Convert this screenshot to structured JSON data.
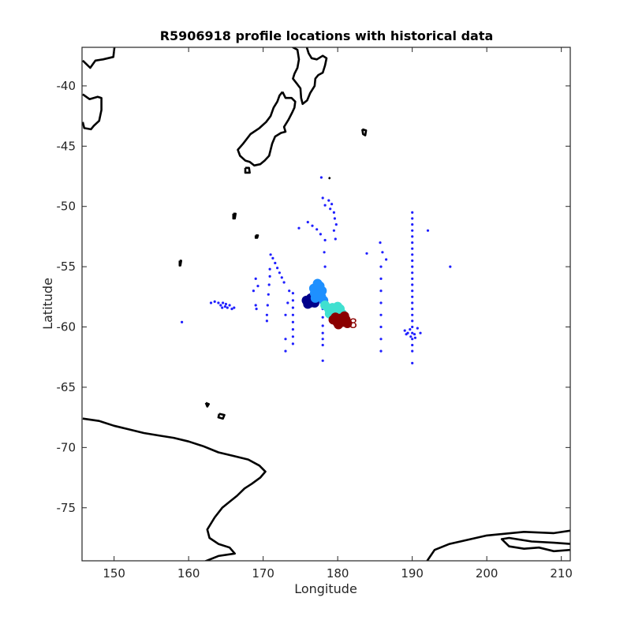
{
  "chart_data": {
    "type": "scatter",
    "title": "R5906918 profile locations with historical data",
    "xlabel": "Longitude",
    "ylabel": "Latitude",
    "xlim": [
      145.7,
      211.2
    ],
    "ylim": [
      -79.4,
      -36.8
    ],
    "xticks": [
      150,
      160,
      170,
      180,
      190,
      200,
      210
    ],
    "yticks": [
      -40,
      -45,
      -50,
      -55,
      -60,
      -65,
      -70,
      -75
    ],
    "grid": false,
    "float_label": "8",
    "colors": {
      "historical": "#1f1fff",
      "coast": "#000000",
      "track_early": "#00008b",
      "track_mid": "#1e90ff",
      "track_late": "#40e0d0",
      "track_latest": "#8b0000"
    },
    "series": [
      {
        "role": "historical",
        "points": [
          [
            177.8,
            -47.6
          ],
          [
            178.0,
            -49.3
          ],
          [
            178.3,
            -49.9
          ],
          [
            178.8,
            -49.5
          ],
          [
            179.0,
            -50.2
          ],
          [
            179.2,
            -49.8
          ],
          [
            179.5,
            -50.5
          ],
          [
            179.6,
            -51.0
          ],
          [
            179.8,
            -51.5
          ],
          [
            176.0,
            -51.3
          ],
          [
            176.6,
            -51.6
          ],
          [
            177.2,
            -51.9
          ],
          [
            177.7,
            -52.3
          ],
          [
            178.3,
            -52.8
          ],
          [
            179.5,
            -52.0
          ],
          [
            179.7,
            -52.7
          ],
          [
            178.2,
            -53.8
          ],
          [
            178.3,
            -55.0
          ],
          [
            174.8,
            -51.8
          ],
          [
            185.7,
            -53.0
          ],
          [
            186.0,
            -53.8
          ],
          [
            186.5,
            -54.4
          ],
          [
            183.9,
            -53.9
          ],
          [
            190.0,
            -50.5
          ],
          [
            190.0,
            -51.0
          ],
          [
            190.0,
            -51.5
          ],
          [
            190.0,
            -52.0
          ],
          [
            190.0,
            -52.5
          ],
          [
            190.0,
            -53.0
          ],
          [
            190.0,
            -53.5
          ],
          [
            190.0,
            -54.0
          ],
          [
            190.0,
            -54.5
          ],
          [
            190.0,
            -55.0
          ],
          [
            190.0,
            -55.5
          ],
          [
            190.0,
            -56.0
          ],
          [
            190.0,
            -56.5
          ],
          [
            190.0,
            -57.0
          ],
          [
            190.0,
            -57.5
          ],
          [
            190.0,
            -58.0
          ],
          [
            190.0,
            -58.5
          ],
          [
            190.0,
            -59.0
          ],
          [
            190.0,
            -59.5
          ],
          [
            190.0,
            -60.0
          ],
          [
            190.0,
            -60.5
          ],
          [
            190.0,
            -61.0
          ],
          [
            190.0,
            -61.5
          ],
          [
            190.0,
            -62.0
          ],
          [
            190.0,
            -63.0
          ],
          [
            189.0,
            -60.3
          ],
          [
            189.4,
            -60.5
          ],
          [
            189.7,
            -60.2
          ],
          [
            190.3,
            -60.6
          ],
          [
            190.7,
            -60.1
          ],
          [
            191.1,
            -60.5
          ],
          [
            189.8,
            -60.8
          ],
          [
            190.4,
            -60.9
          ],
          [
            189.2,
            -60.6
          ],
          [
            192.1,
            -52.0
          ],
          [
            195.1,
            -55.0
          ],
          [
            185.8,
            -55.0
          ],
          [
            185.8,
            -56.0
          ],
          [
            185.8,
            -57.0
          ],
          [
            185.8,
            -58.0
          ],
          [
            185.8,
            -59.0
          ],
          [
            185.8,
            -60.0
          ],
          [
            185.8,
            -61.0
          ],
          [
            185.8,
            -62.0
          ],
          [
            171.0,
            -54.0
          ],
          [
            171.3,
            -54.3
          ],
          [
            171.6,
            -54.7
          ],
          [
            171.9,
            -55.1
          ],
          [
            172.2,
            -55.5
          ],
          [
            172.5,
            -55.9
          ],
          [
            172.8,
            -56.3
          ],
          [
            170.9,
            -55.2
          ],
          [
            170.9,
            -55.8
          ],
          [
            170.8,
            -56.5
          ],
          [
            170.7,
            -57.3
          ],
          [
            170.6,
            -58.2
          ],
          [
            170.5,
            -59.0
          ],
          [
            170.5,
            -59.5
          ],
          [
            173.5,
            -57.0
          ],
          [
            173.3,
            -58.0
          ],
          [
            173.0,
            -59.0
          ],
          [
            173.0,
            -61.0
          ],
          [
            173.0,
            -62.0
          ],
          [
            174.0,
            -57.2
          ],
          [
            174.0,
            -57.8
          ],
          [
            174.0,
            -58.4
          ],
          [
            174.0,
            -59.0
          ],
          [
            174.0,
            -59.6
          ],
          [
            174.0,
            -60.2
          ],
          [
            174.0,
            -60.8
          ],
          [
            174.0,
            -61.4
          ],
          [
            178.0,
            -58.5
          ],
          [
            178.0,
            -59.2
          ],
          [
            178.0,
            -59.9
          ],
          [
            178.0,
            -60.5
          ],
          [
            178.0,
            -61.0
          ],
          [
            178.0,
            -61.5
          ],
          [
            178.0,
            -62.8
          ],
          [
            169.0,
            -56.0
          ],
          [
            168.7,
            -57.0
          ],
          [
            169.0,
            -58.2
          ],
          [
            169.1,
            -58.5
          ],
          [
            163.0,
            -58.0
          ],
          [
            163.5,
            -57.9
          ],
          [
            164.0,
            -58.0
          ],
          [
            164.3,
            -58.2
          ],
          [
            164.6,
            -58.0
          ],
          [
            164.9,
            -58.3
          ],
          [
            165.2,
            -58.4
          ],
          [
            165.5,
            -58.2
          ],
          [
            165.8,
            -58.5
          ],
          [
            166.1,
            -58.4
          ],
          [
            164.5,
            -58.4
          ],
          [
            165.0,
            -58.1
          ],
          [
            159.1,
            -59.6
          ],
          [
            169.3,
            -56.6
          ]
        ]
      },
      {
        "role": "track_early",
        "points": [
          [
            175.8,
            -57.8
          ],
          [
            176.0,
            -58.1
          ],
          [
            176.3,
            -58.0
          ],
          [
            176.6,
            -57.7
          ],
          [
            176.9,
            -58.0
          ],
          [
            176.4,
            -57.6
          ],
          [
            176.1,
            -57.9
          ]
        ]
      },
      {
        "role": "track_mid",
        "points": [
          [
            176.8,
            -56.8
          ],
          [
            177.2,
            -57.0
          ],
          [
            177.6,
            -56.6
          ],
          [
            177.9,
            -57.0
          ],
          [
            177.4,
            -57.4
          ],
          [
            177.0,
            -57.6
          ],
          [
            177.8,
            -57.5
          ],
          [
            178.1,
            -57.8
          ],
          [
            177.3,
            -56.4
          ],
          [
            176.9,
            -57.2
          ]
        ]
      },
      {
        "role": "track_late",
        "points": [
          [
            178.3,
            -58.2
          ],
          [
            178.8,
            -58.5
          ],
          [
            179.3,
            -58.4
          ],
          [
            179.8,
            -58.6
          ],
          [
            180.3,
            -58.5
          ],
          [
            180.6,
            -58.9
          ],
          [
            179.6,
            -59.0
          ],
          [
            178.9,
            -58.9
          ],
          [
            180.0,
            -58.3
          ]
        ]
      },
      {
        "role": "track_latest",
        "points": [
          [
            179.4,
            -59.4
          ],
          [
            179.9,
            -59.6
          ],
          [
            180.3,
            -59.3
          ],
          [
            180.7,
            -59.6
          ],
          [
            181.1,
            -59.4
          ],
          [
            180.1,
            -59.8
          ],
          [
            179.7,
            -59.2
          ],
          [
            180.9,
            -59.1
          ],
          [
            181.3,
            -59.7
          ]
        ]
      }
    ],
    "coastlines": [
      [
        [
          173.0,
          -34.4
        ],
        [
          172.8,
          -35.5
        ],
        [
          173.4,
          -36.0
        ],
        [
          174.0,
          -36.8
        ],
        [
          174.6,
          -37.0
        ],
        [
          174.8,
          -37.8
        ],
        [
          174.6,
          -38.5
        ],
        [
          174.2,
          -39.0
        ],
        [
          174.0,
          -39.4
        ],
        [
          174.5,
          -39.8
        ],
        [
          175.0,
          -40.2
        ],
        [
          175.1,
          -41.0
        ],
        [
          175.3,
          -41.5
        ],
        [
          175.9,
          -41.2
        ],
        [
          176.3,
          -40.6
        ],
        [
          176.9,
          -40.0
        ],
        [
          177.0,
          -39.4
        ],
        [
          177.4,
          -39.1
        ],
        [
          178.0,
          -38.9
        ],
        [
          178.3,
          -38.3
        ],
        [
          178.5,
          -37.7
        ],
        [
          178.0,
          -37.5
        ],
        [
          177.2,
          -37.8
        ],
        [
          176.5,
          -37.7
        ],
        [
          176.1,
          -37.3
        ],
        [
          175.8,
          -36.7
        ],
        [
          175.4,
          -36.4
        ],
        [
          175.0,
          -36.2
        ],
        [
          174.6,
          -35.6
        ],
        [
          174.0,
          -35.0
        ],
        [
          173.0,
          -34.4
        ]
      ],
      [
        [
          172.6,
          -40.5
        ],
        [
          173.0,
          -41.0
        ],
        [
          173.8,
          -41.0
        ],
        [
          174.3,
          -41.3
        ],
        [
          174.2,
          -41.8
        ],
        [
          173.9,
          -42.2
        ],
        [
          173.4,
          -42.8
        ],
        [
          172.8,
          -43.4
        ],
        [
          173.0,
          -43.8
        ],
        [
          172.4,
          -43.9
        ],
        [
          171.6,
          -44.2
        ],
        [
          171.2,
          -44.8
        ],
        [
          170.8,
          -45.8
        ],
        [
          170.2,
          -46.2
        ],
        [
          169.6,
          -46.5
        ],
        [
          168.8,
          -46.6
        ],
        [
          168.2,
          -46.3
        ],
        [
          167.6,
          -46.2
        ],
        [
          166.9,
          -45.8
        ],
        [
          166.6,
          -45.3
        ],
        [
          167.3,
          -44.8
        ],
        [
          168.3,
          -44.0
        ],
        [
          169.5,
          -43.5
        ],
        [
          170.4,
          -43.0
        ],
        [
          171.0,
          -42.5
        ],
        [
          171.4,
          -41.8
        ],
        [
          171.9,
          -41.3
        ],
        [
          172.2,
          -40.8
        ],
        [
          172.6,
          -40.5
        ]
      ],
      [
        [
          167.6,
          -46.8
        ],
        [
          168.1,
          -46.8
        ],
        [
          168.2,
          -47.2
        ],
        [
          167.6,
          -47.2
        ],
        [
          167.6,
          -46.8
        ]
      ],
      [
        [
          145.8,
          -37.9
        ],
        [
          146.8,
          -38.5
        ],
        [
          147.5,
          -37.9
        ],
        [
          148.5,
          -37.8
        ],
        [
          149.9,
          -37.6
        ],
        [
          150.1,
          -36.5
        ]
      ],
      [
        [
          145.8,
          -40.7
        ],
        [
          146.7,
          -41.1
        ],
        [
          147.8,
          -40.9
        ],
        [
          148.3,
          -41.0
        ],
        [
          148.3,
          -42.0
        ],
        [
          148.0,
          -42.9
        ],
        [
          147.3,
          -43.3
        ],
        [
          146.9,
          -43.6
        ],
        [
          146.0,
          -43.5
        ],
        [
          145.8,
          -43.0
        ]
      ],
      [
        [
          183.3,
          -43.6
        ],
        [
          183.8,
          -43.7
        ],
        [
          183.7,
          -44.1
        ],
        [
          183.4,
          -44.0
        ],
        [
          183.3,
          -43.6
        ]
      ],
      [
        [
          166.0,
          -50.6
        ],
        [
          166.3,
          -50.6
        ],
        [
          166.2,
          -51.0
        ],
        [
          166.0,
          -51.0
        ],
        [
          166.0,
          -50.6
        ]
      ],
      [
        [
          158.8,
          -54.5
        ],
        [
          159.0,
          -54.5
        ],
        [
          158.9,
          -54.9
        ],
        [
          158.8,
          -54.9
        ],
        [
          158.8,
          -54.5
        ]
      ],
      [
        [
          169.0,
          -52.4
        ],
        [
          169.3,
          -52.4
        ],
        [
          169.2,
          -52.6
        ],
        [
          169.0,
          -52.6
        ],
        [
          169.0,
          -52.4
        ]
      ],
      [
        [
          178.8,
          -47.6
        ],
        [
          179.0,
          -47.7
        ]
      ],
      [
        [
          162.3,
          -66.3
        ],
        [
          162.7,
          -66.4
        ],
        [
          162.5,
          -66.6
        ],
        [
          162.3,
          -66.3
        ]
      ],
      [
        [
          164.1,
          -67.2
        ],
        [
          164.8,
          -67.3
        ],
        [
          164.6,
          -67.6
        ],
        [
          164.0,
          -67.5
        ],
        [
          164.1,
          -67.2
        ]
      ],
      [
        [
          145.8,
          -67.6
        ],
        [
          148.0,
          -67.8
        ],
        [
          150.0,
          -68.2
        ],
        [
          152.0,
          -68.5
        ],
        [
          154.0,
          -68.8
        ],
        [
          156.0,
          -69.0
        ],
        [
          158.0,
          -69.2
        ],
        [
          160.0,
          -69.5
        ],
        [
          162.0,
          -69.9
        ],
        [
          164.0,
          -70.4
        ],
        [
          166.0,
          -70.7
        ],
        [
          168.0,
          -71.0
        ],
        [
          169.5,
          -71.5
        ],
        [
          170.3,
          -72.0
        ],
        [
          169.6,
          -72.5
        ],
        [
          168.5,
          -73.0
        ],
        [
          167.5,
          -73.4
        ],
        [
          166.5,
          -74.0
        ],
        [
          165.5,
          -74.5
        ],
        [
          164.5,
          -75.0
        ],
        [
          163.5,
          -75.8
        ],
        [
          162.5,
          -76.8
        ],
        [
          162.8,
          -77.5
        ],
        [
          164.0,
          -78.0
        ],
        [
          165.5,
          -78.3
        ],
        [
          166.2,
          -78.8
        ],
        [
          164.0,
          -79.0
        ],
        [
          162.0,
          -79.5
        ]
      ],
      [
        [
          211.2,
          -78.0
        ],
        [
          209.0,
          -77.9
        ],
        [
          206.0,
          -77.8
        ],
        [
          203.0,
          -77.5
        ],
        [
          202.0,
          -77.6
        ],
        [
          203.0,
          -78.2
        ],
        [
          205.0,
          -78.4
        ],
        [
          207.0,
          -78.3
        ],
        [
          209.0,
          -78.6
        ],
        [
          211.2,
          -78.5
        ]
      ],
      [
        [
          211.2,
          -76.9
        ],
        [
          209.0,
          -77.1
        ],
        [
          205.0,
          -77.0
        ],
        [
          200.0,
          -77.3
        ],
        [
          195.0,
          -78.0
        ],
        [
          193.0,
          -78.5
        ],
        [
          192.0,
          -79.4
        ]
      ]
    ]
  }
}
